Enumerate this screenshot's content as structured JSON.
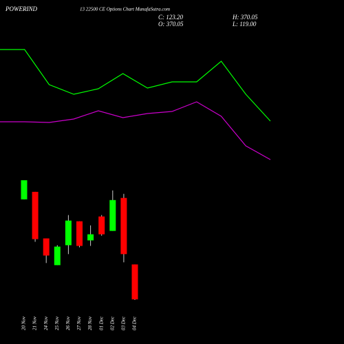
{
  "chart_data": [
    {
      "type": "line",
      "title": "POWERIND",
      "subtitle": "13 22500 CE Options Chart MunafaSutra.com",
      "annotations": [
        "C: 123.20",
        "O: 370.05",
        "H: 370.05",
        "L: 119.00"
      ],
      "series": [
        {
          "color": "#00ff00",
          "values": [
            178,
            178,
            127,
            113,
            121,
            143,
            122,
            131,
            131,
            161,
            113,
            74
          ]
        },
        {
          "color": "#cc00cc",
          "values": [
            73,
            73,
            72,
            77,
            89,
            79,
            85,
            88,
            102,
            81,
            38,
            18
          ]
        }
      ]
    },
    {
      "type": "candlestick",
      "up_color": "#00ff00",
      "down_color": "#ff0000",
      "categories": [
        "20 Nov",
        "21 Nov",
        "24 Nov",
        "25 Nov",
        "26 Nov",
        "27 Nov",
        "28 Nov",
        "01 Dec",
        "02 Dec",
        "03 Dec",
        "04 Dec"
      ],
      "open": [
        830,
        883,
        554,
        365,
        506,
        675,
        540,
        709,
        607,
        840,
        370.05
      ],
      "high": [
        965,
        883,
        554,
        506,
        719,
        675,
        646,
        719,
        893,
        869,
        370.05
      ],
      "low": [
        830,
        530,
        380,
        365,
        443,
        491,
        501,
        573,
        607,
        385,
        119.0
      ],
      "close": [
        965,
        549,
        433,
        496,
        680,
        501,
        583,
        583,
        825,
        443,
        123.2
      ]
    }
  ]
}
